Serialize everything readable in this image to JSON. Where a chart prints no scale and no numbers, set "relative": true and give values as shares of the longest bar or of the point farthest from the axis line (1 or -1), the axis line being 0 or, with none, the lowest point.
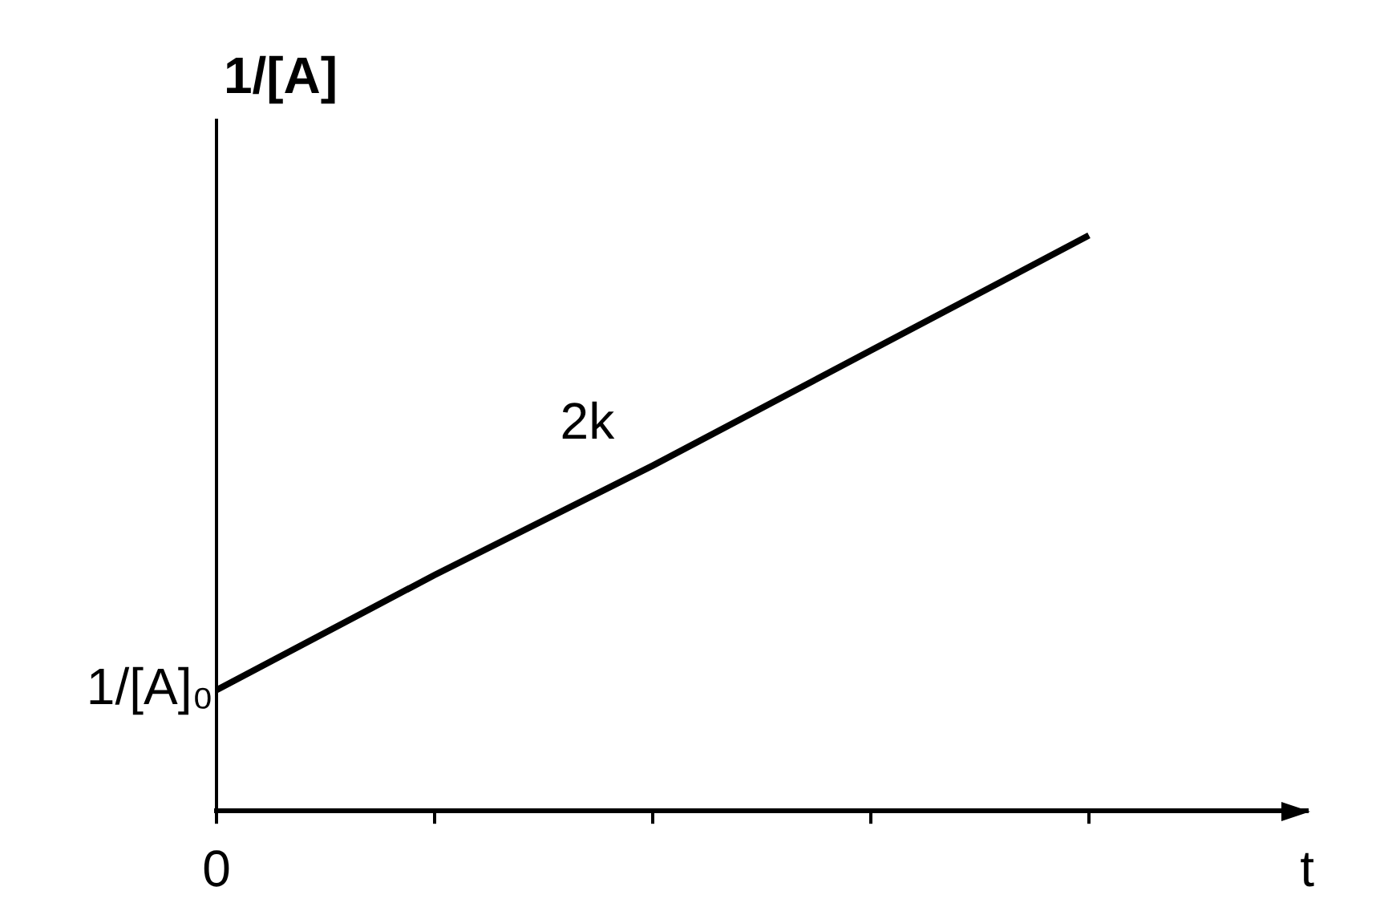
{
  "chart_data": {
    "type": "line",
    "ylabel": "1/[A]",
    "xlabel": "t",
    "relative": true,
    "categories": [
      null,
      null,
      null,
      null,
      null
    ],
    "series": [
      {
        "color": "#000000",
        "values": [
          0.21,
          0.41,
          0.6,
          0.8,
          1
        ]
      }
    ],
    "annotations": [
      "2k",
      "1/[A]₀",
      "0"
    ],
    "grid": false,
    "legend": false,
    "marker": "none",
    "line_style": "solid"
  }
}
